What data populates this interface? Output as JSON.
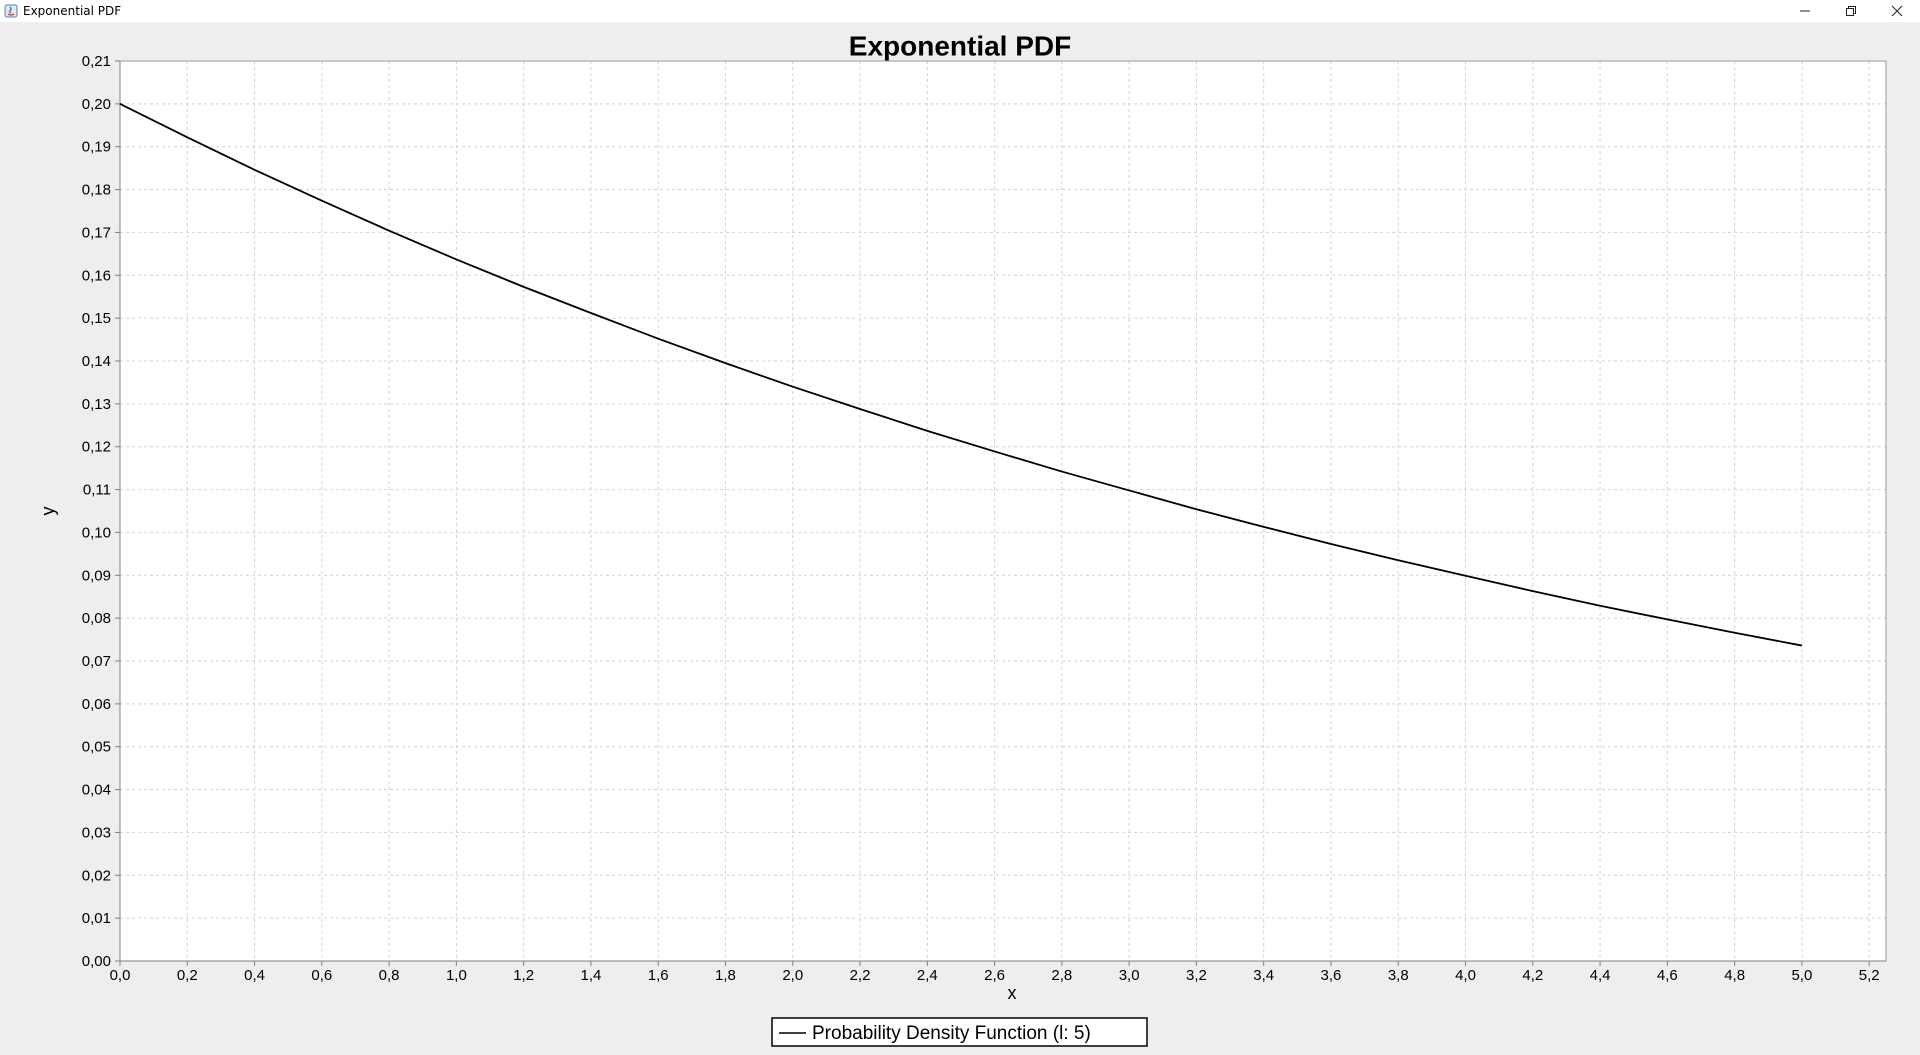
{
  "window": {
    "title": "Exponential PDF",
    "icon": "java-icon",
    "controls": [
      "minimize-icon",
      "restore-icon",
      "close-icon"
    ]
  },
  "chart_data": {
    "type": "line",
    "title": "Exponential PDF",
    "xlabel": "x",
    "ylabel": "y",
    "xlim": [
      0,
      5.25
    ],
    "ylim": [
      0,
      0.21
    ],
    "x_ticks": [
      "0,0",
      "0,2",
      "0,4",
      "0,6",
      "0,8",
      "1,0",
      "1,2",
      "1,4",
      "1,6",
      "1,8",
      "2,0",
      "2,2",
      "2,4",
      "2,6",
      "2,8",
      "3,0",
      "3,2",
      "3,4",
      "3,6",
      "3,8",
      "4,0",
      "4,2",
      "4,4",
      "4,6",
      "4,8",
      "5,0",
      "5,2"
    ],
    "y_ticks": [
      "0,00",
      "0,01",
      "0,02",
      "0,03",
      "0,04",
      "0,05",
      "0,06",
      "0,07",
      "0,08",
      "0,09",
      "0,10",
      "0,11",
      "0,12",
      "0,13",
      "0,14",
      "0,15",
      "0,16",
      "0,17",
      "0,18",
      "0,19",
      "0,20",
      "0,21"
    ],
    "grid": true,
    "legend_position": "bottom",
    "series": [
      {
        "name": "Probability Density Function (l: 5)",
        "color": "#000000",
        "x": [
          0.0,
          0.2,
          0.4,
          0.6,
          0.8,
          1.0,
          1.2,
          1.4,
          1.6,
          1.8,
          2.0,
          2.2,
          2.4,
          2.6,
          2.8,
          3.0,
          3.2,
          3.4,
          3.6,
          3.8,
          4.0,
          4.2,
          4.4,
          4.6,
          4.8,
          5.0
        ],
        "y": [
          0.2,
          0.1922,
          0.1846,
          0.1774,
          0.1704,
          0.1637,
          0.1573,
          0.1512,
          0.1452,
          0.1395,
          0.134,
          0.1288,
          0.1237,
          0.1189,
          0.1142,
          0.1098,
          0.1054,
          0.1013,
          0.0973,
          0.0935,
          0.0899,
          0.0863,
          0.0829,
          0.0797,
          0.0766,
          0.0736
        ]
      }
    ]
  }
}
